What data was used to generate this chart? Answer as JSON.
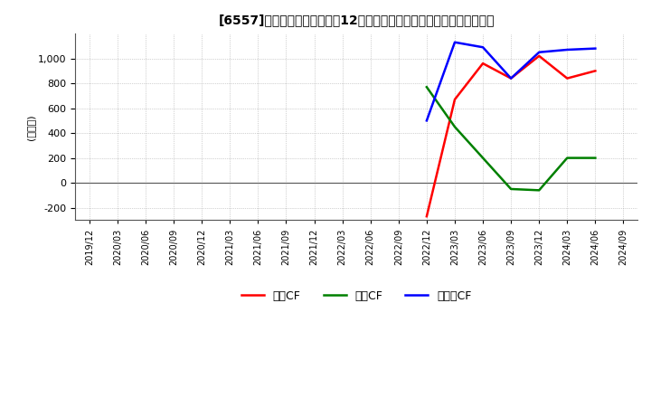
{
  "title": "[6557]　キャッシュフローの12か月移動合計の対前年同期増減額の推移",
  "ylabel": "(百万円)",
  "ylim": [
    -300,
    1200
  ],
  "yticks": [
    -200,
    0,
    200,
    400,
    600,
    800,
    1000
  ],
  "x_labels": [
    "2019/12",
    "2020/03",
    "2020/06",
    "2020/09",
    "2020/12",
    "2021/03",
    "2021/06",
    "2021/09",
    "2021/12",
    "2022/03",
    "2022/06",
    "2022/09",
    "2022/12",
    "2023/03",
    "2023/06",
    "2023/09",
    "2023/12",
    "2024/03",
    "2024/06",
    "2024/09"
  ],
  "operating_cf": {
    "x_indices": [
      12,
      13,
      14,
      15,
      16,
      17,
      18
    ],
    "y_values": [
      -270,
      670,
      960,
      840,
      1020,
      840,
      900
    ]
  },
  "investing_cf": {
    "x_indices": [
      12,
      13,
      14,
      15,
      16,
      17,
      18
    ],
    "y_values": [
      770,
      450,
      200,
      -50,
      -60,
      200,
      200
    ]
  },
  "free_cf": {
    "x_indices": [
      12,
      13,
      14,
      15,
      16,
      17,
      18
    ],
    "y_values": [
      500,
      1130,
      1090,
      840,
      1050,
      1070,
      1080
    ]
  },
  "colors": {
    "operating": "#ff0000",
    "investing": "#008000",
    "free": "#0000ff"
  },
  "legend_labels": [
    "営業CF",
    "投資CF",
    "フリーCF"
  ],
  "background_color": "#ffffff",
  "grid_color": "#aaaaaa",
  "grid_style": ":"
}
